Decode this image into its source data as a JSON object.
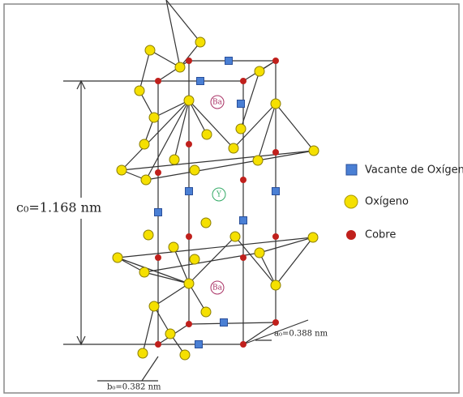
{
  "labels": {
    "c_axis": "c₀=1.168 nm",
    "a_axis": "a₀=0.388 nm",
    "b_axis": "b₀=0.382 nm"
  },
  "atoms": {
    "ba_top": "Ba",
    "y": "Y",
    "ba_bottom": "Ba"
  },
  "legend": [
    {
      "label": "Vacante de Oxígeno"
    },
    {
      "label": "Oxígeno"
    },
    {
      "label": "Cobre"
    }
  ]
}
